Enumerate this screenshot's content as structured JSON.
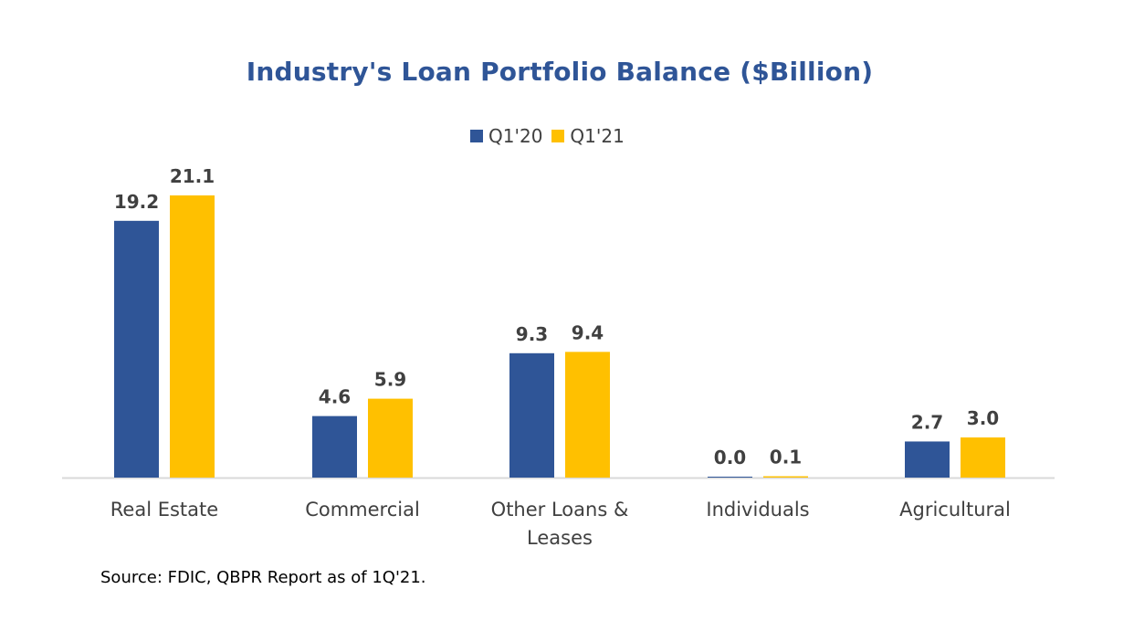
{
  "chart_data": {
    "type": "bar",
    "title": "Industry's Loan Portfolio Balance ($Billion)",
    "categories": [
      "Real Estate",
      "Commercial",
      "Other Loans & Leases",
      "Individuals",
      "Agricultural"
    ],
    "category_lines": [
      [
        "Real Estate"
      ],
      [
        "Commercial"
      ],
      [
        "Other Loans &",
        "Leases"
      ],
      [
        "Individuals"
      ],
      [
        "Agricultural"
      ]
    ],
    "series": [
      {
        "name": "Q1'20",
        "values": [
          19.2,
          4.6,
          9.3,
          0.0,
          2.7
        ],
        "labels": [
          "19.2",
          "4.6",
          "9.3",
          "0.0",
          "2.7"
        ],
        "color": "#2F5597"
      },
      {
        "name": "Q1'21",
        "values": [
          21.1,
          5.9,
          9.4,
          0.1,
          3.0
        ],
        "labels": [
          "21.1",
          "5.9",
          "9.4",
          "0.1",
          "3.0"
        ],
        "color": "#FFC000"
      }
    ],
    "legend_position": "top",
    "grid": false,
    "ylim": [
      0,
      21.1
    ]
  },
  "source_note": "Source: FDIC, QBPR Report as of 1Q'21."
}
